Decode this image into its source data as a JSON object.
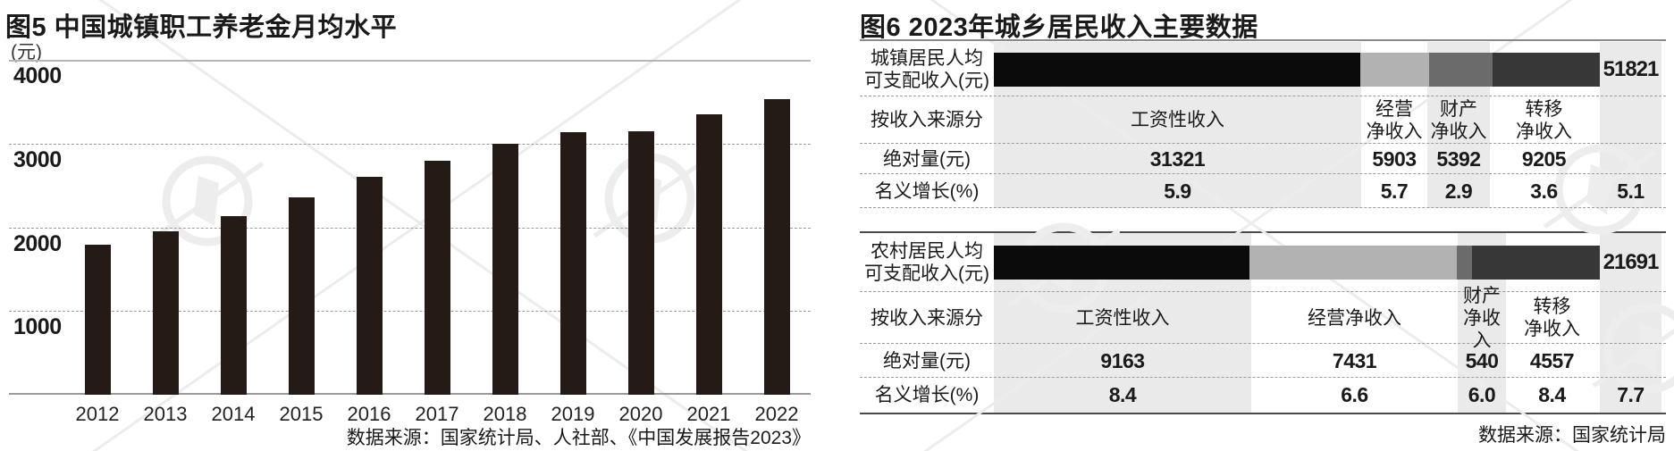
{
  "figure5": {
    "title": "图5 中国城镇职工养老金月均水平",
    "unit_label": "(元)",
    "source": "数据来源：国家统计局、人社部、《中国发展报告2023》"
  },
  "figure6": {
    "title": "图6 2023年城乡居民收入主要数据",
    "source": "数据来源：国家统计局",
    "sections": [
      {
        "id": "urban",
        "bar_label_lines": [
          "城镇居民人均",
          "可支配收入(元)"
        ],
        "total_value": "51821",
        "source_split_label": "按收入来源分",
        "column_headers": [
          [
            "工资性收入"
          ],
          [
            "经营",
            "净收入"
          ],
          [
            "财产",
            "净收入"
          ],
          [
            "转移",
            "净收入"
          ]
        ],
        "abs_row_label": "绝对量(元)",
        "abs_values": [
          "31321",
          "5903",
          "5392",
          "9205"
        ],
        "growth_row_label": "名义增长(%)",
        "growth_values": [
          "5.9",
          "5.7",
          "2.9",
          "3.6"
        ],
        "growth_total": "5.1"
      },
      {
        "id": "rural",
        "bar_label_lines": [
          "农村居民人均",
          "可支配收入(元)"
        ],
        "total_value": "21691",
        "source_split_label": "按收入来源分",
        "column_headers": [
          [
            "工资性收入"
          ],
          [
            "经营净收入"
          ],
          [
            "财产",
            "净收入"
          ],
          [
            "转移",
            "净收入"
          ]
        ],
        "abs_row_label": "绝对量(元)",
        "abs_values": [
          "9163",
          "7431",
          "540",
          "4557"
        ],
        "growth_row_label": "名义增长(%)",
        "growth_values": [
          "8.4",
          "6.6",
          "6.0",
          "8.4"
        ],
        "growth_total": "7.7"
      }
    ]
  },
  "colors": {
    "pension_bar": "#241a16",
    "stack_segments": [
      "#0b0b0b",
      "#b2b2b2",
      "#6b6b6b",
      "#373737"
    ],
    "column_stripe": "#eaeaea"
  },
  "chart_data": [
    {
      "type": "bar",
      "title": "图5 中国城镇职工养老金月均水平",
      "ylabel": "(元)",
      "xlabel": "",
      "categories": [
        "2012",
        "2013",
        "2014",
        "2015",
        "2016",
        "2017",
        "2018",
        "2019",
        "2020",
        "2021",
        "2022"
      ],
      "values": [
        1790,
        1950,
        2130,
        2360,
        2600,
        2790,
        3000,
        3140,
        3150,
        3350,
        3530
      ],
      "ylim": [
        0,
        4000
      ],
      "yticks": [
        4000,
        3000,
        2000,
        1000
      ],
      "grid": "dashed-horizontal",
      "legend": "none",
      "source": "数据来源：国家统计局、人社部、《中国发展报告2023》"
    },
    {
      "type": "bar",
      "orientation": "horizontal-stacked",
      "title": "图6 2023年城乡居民收入主要数据",
      "categories": [
        "城镇居民人均可支配收入(元)",
        "农村居民人均可支配收入(元)"
      ],
      "series": [
        {
          "name": "工资性收入",
          "values": [
            31321,
            9163
          ]
        },
        {
          "name": "经营净收入",
          "values": [
            5903,
            7431
          ]
        },
        {
          "name": "财产净收入",
          "values": [
            5392,
            540
          ]
        },
        {
          "name": "转移净收入",
          "values": [
            9205,
            4557
          ]
        }
      ],
      "totals": [
        51821,
        21691
      ],
      "nominal_growth_pct": {
        "工资性收入": [
          5.9,
          8.4
        ],
        "经营净收入": [
          5.7,
          6.6
        ],
        "财产净收入": [
          2.9,
          6.0
        ],
        "转移净收入": [
          3.6,
          8.4
        ],
        "合计": [
          5.1,
          7.7
        ]
      },
      "source": "数据来源：国家统计局"
    }
  ]
}
